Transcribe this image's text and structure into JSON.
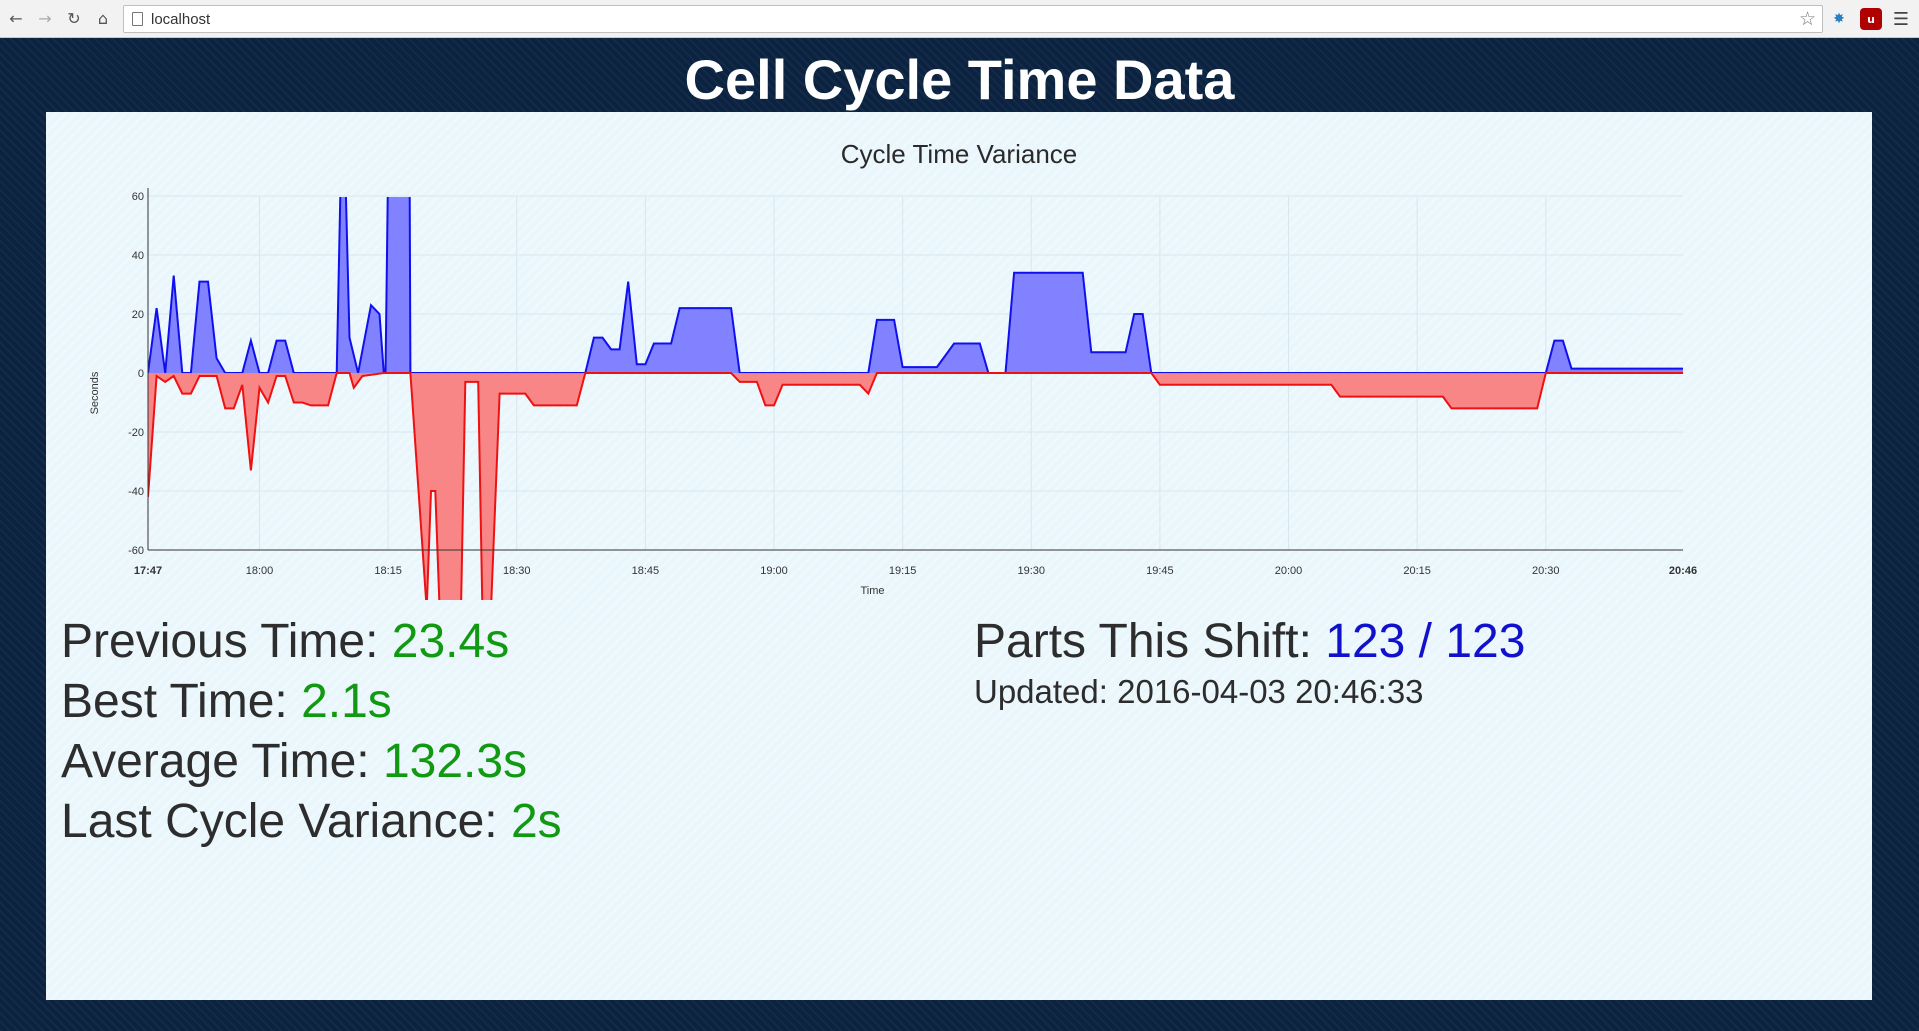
{
  "browser": {
    "url": "localhost",
    "icons": [
      "back-icon",
      "forward-icon",
      "reload-icon",
      "home-icon",
      "page-icon",
      "star-icon",
      "extension-icon",
      "ublock-icon",
      "menu-icon"
    ]
  },
  "page": {
    "title": "Cell Cycle Time Data"
  },
  "stats": {
    "previous_label": "Previous Time:",
    "previous_value": "23.4s",
    "best_label": "Best Time:",
    "best_value": "2.1s",
    "average_label": "Average Time:",
    "average_value": "132.3s",
    "variance_label": "Last Cycle Variance:",
    "variance_value": "2s",
    "parts_label": "Parts This Shift:",
    "parts_value": "123 / 123",
    "updated_label": "Updated:",
    "updated_value": "2016-04-03 20:46:33"
  },
  "colors": {
    "positive_fill": "#7b7bff",
    "positive_line": "#1010ee",
    "negative_fill": "#f98080",
    "negative_line": "#ee1111",
    "value_green": "#119911",
    "value_blue": "#1111cc"
  },
  "chart_data": {
    "type": "area",
    "title": "Cycle Time Variance",
    "xlabel": "Time",
    "ylabel": "Seconds",
    "ylim": [
      -60,
      60
    ],
    "xlim": [
      "17:47",
      "20:46"
    ],
    "y_ticks": [
      60,
      40,
      20,
      0,
      -20,
      -40,
      -60
    ],
    "x_ticks": [
      "17:47",
      "18:00",
      "18:15",
      "18:30",
      "18:45",
      "19:00",
      "19:15",
      "19:30",
      "19:45",
      "20:00",
      "20:15",
      "20:30",
      "20:46"
    ],
    "grid": true,
    "series": [
      {
        "name": "",
        "sign": "positive",
        "points": [
          [
            "17:47",
            0
          ],
          [
            "17:48",
            22
          ],
          [
            "17:49",
            0
          ],
          [
            "17:50",
            33
          ],
          [
            "17:51",
            0
          ],
          [
            "17:52",
            0
          ],
          [
            "17:53",
            31
          ],
          [
            "17:54",
            31
          ],
          [
            "17:55",
            5
          ],
          [
            "17:56",
            0
          ],
          [
            "17:58",
            0
          ],
          [
            "17:59",
            11
          ],
          [
            "18:00",
            0
          ],
          [
            "18:01",
            0
          ],
          [
            "18:02",
            11
          ],
          [
            "18:03",
            11
          ],
          [
            "18:04",
            0
          ],
          [
            "18:09",
            0
          ],
          [
            "18:09.5",
            70
          ],
          [
            "18:10",
            70
          ],
          [
            "18:10.5",
            12
          ],
          [
            "18:11.5",
            0
          ],
          [
            "18:13",
            23
          ],
          [
            "18:14",
            20
          ],
          [
            "18:14.5",
            0
          ],
          [
            "18:14.7",
            0
          ],
          [
            "18:15",
            70
          ],
          [
            "18:17.5",
            70
          ],
          [
            "18:17.6",
            0
          ],
          [
            "18:38",
            0
          ],
          [
            "18:39",
            12
          ],
          [
            "18:40",
            12
          ],
          [
            "18:41",
            8
          ],
          [
            "18:42",
            8
          ],
          [
            "18:43",
            31
          ],
          [
            "18:44",
            3
          ],
          [
            "18:45",
            3
          ],
          [
            "18:46",
            10
          ],
          [
            "18:48",
            10
          ],
          [
            "18:49",
            22
          ],
          [
            "18:55",
            22
          ],
          [
            "18:56",
            0
          ],
          [
            "19:11",
            0
          ],
          [
            "19:12",
            18
          ],
          [
            "19:14",
            18
          ],
          [
            "19:15",
            2
          ],
          [
            "19:19",
            2
          ],
          [
            "19:21",
            10
          ],
          [
            "19:24",
            10
          ],
          [
            "19:25",
            0
          ],
          [
            "19:27",
            0
          ],
          [
            "19:28",
            34
          ],
          [
            "19:36",
            34
          ],
          [
            "19:37",
            7
          ],
          [
            "19:41",
            7
          ],
          [
            "19:42",
            20
          ],
          [
            "19:43",
            20
          ],
          [
            "19:44",
            0
          ],
          [
            "20:30",
            0
          ],
          [
            "20:31",
            11
          ],
          [
            "20:32",
            11
          ],
          [
            "20:33",
            1.5
          ],
          [
            "20:46",
            1.5
          ]
        ]
      },
      {
        "name": "",
        "sign": "negative",
        "points": [
          [
            "17:47",
            -42
          ],
          [
            "17:48",
            -1
          ],
          [
            "17:49",
            -3
          ],
          [
            "17:50",
            -1
          ],
          [
            "17:51",
            -7
          ],
          [
            "17:52",
            -7
          ],
          [
            "17:53",
            -1
          ],
          [
            "17:55",
            -1
          ],
          [
            "17:56",
            -12
          ],
          [
            "17:57",
            -12
          ],
          [
            "17:58",
            -4
          ],
          [
            "17:59",
            -33
          ],
          [
            "18:00",
            -5
          ],
          [
            "18:01",
            -10
          ],
          [
            "18:02",
            -1
          ],
          [
            "18:03",
            -1
          ],
          [
            "18:04",
            -10
          ],
          [
            "18:05",
            -10
          ],
          [
            "18:06",
            -11
          ],
          [
            "18:08",
            -11
          ],
          [
            "18:09",
            0
          ],
          [
            "18:10.5",
            0
          ],
          [
            "18:11",
            -5
          ],
          [
            "18:12",
            -1
          ],
          [
            "18:14.5",
            0
          ],
          [
            "18:17.6",
            0
          ],
          [
            "18:19.5",
            -80
          ],
          [
            "18:20",
            -40
          ],
          [
            "18:20.5",
            -40
          ],
          [
            "18:21",
            -80
          ],
          [
            "18:23.5",
            -80
          ],
          [
            "18:24",
            -3
          ],
          [
            "18:25.5",
            -3
          ],
          [
            "18:26",
            -80
          ],
          [
            "18:27",
            -80
          ],
          [
            "18:28",
            -7
          ],
          [
            "18:31",
            -7
          ],
          [
            "18:32",
            -11
          ],
          [
            "18:37",
            -11
          ],
          [
            "18:38",
            0
          ],
          [
            "18:55",
            0
          ],
          [
            "18:56",
            -3
          ],
          [
            "18:58",
            -3
          ],
          [
            "18:59",
            -11
          ],
          [
            "19:00",
            -11
          ],
          [
            "19:01",
            -4
          ],
          [
            "19:10",
            -4
          ],
          [
            "19:11",
            -7
          ],
          [
            "19:12",
            0
          ],
          [
            "19:44",
            0
          ],
          [
            "19:45",
            -4
          ],
          [
            "20:05",
            -4
          ],
          [
            "20:06",
            -8
          ],
          [
            "20:18",
            -8
          ],
          [
            "20:19",
            -12
          ],
          [
            "20:29",
            -12
          ],
          [
            "20:30",
            0
          ],
          [
            "20:46",
            0
          ]
        ]
      }
    ]
  }
}
